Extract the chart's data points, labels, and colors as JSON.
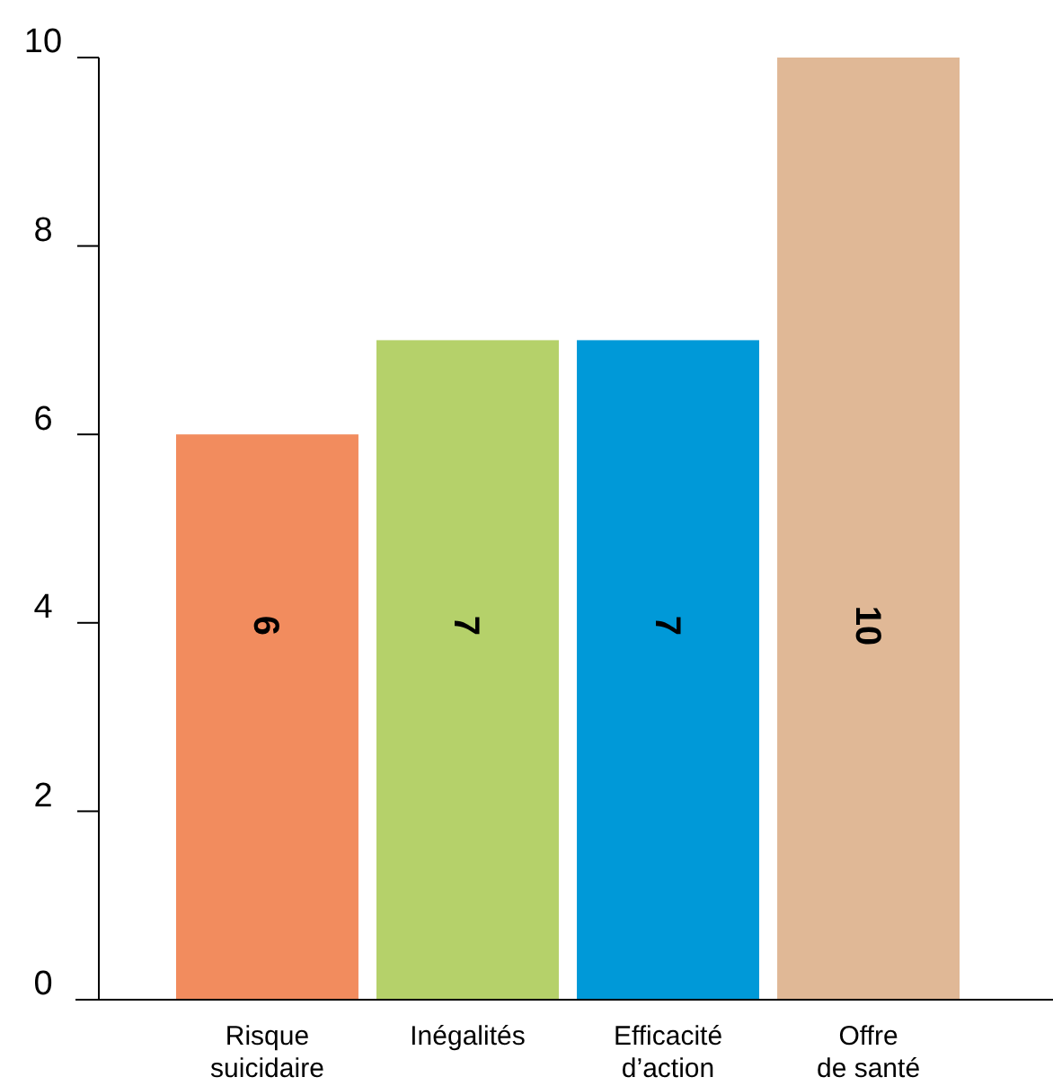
{
  "chart_data": {
    "type": "bar",
    "categories": [
      "Risque\nsuicidaire",
      "Inégalités",
      "Efficacité\nd’action",
      "Offre\nde santé"
    ],
    "values": [
      6,
      7,
      7,
      10
    ],
    "colors": [
      "#f28c5e",
      "#b5d16a",
      "#0099d8",
      "#e0b896"
    ],
    "ylim": [
      0,
      10
    ],
    "yticks": [
      0,
      2,
      4,
      6,
      8,
      10
    ],
    "data_labels": true,
    "grid": false
  }
}
